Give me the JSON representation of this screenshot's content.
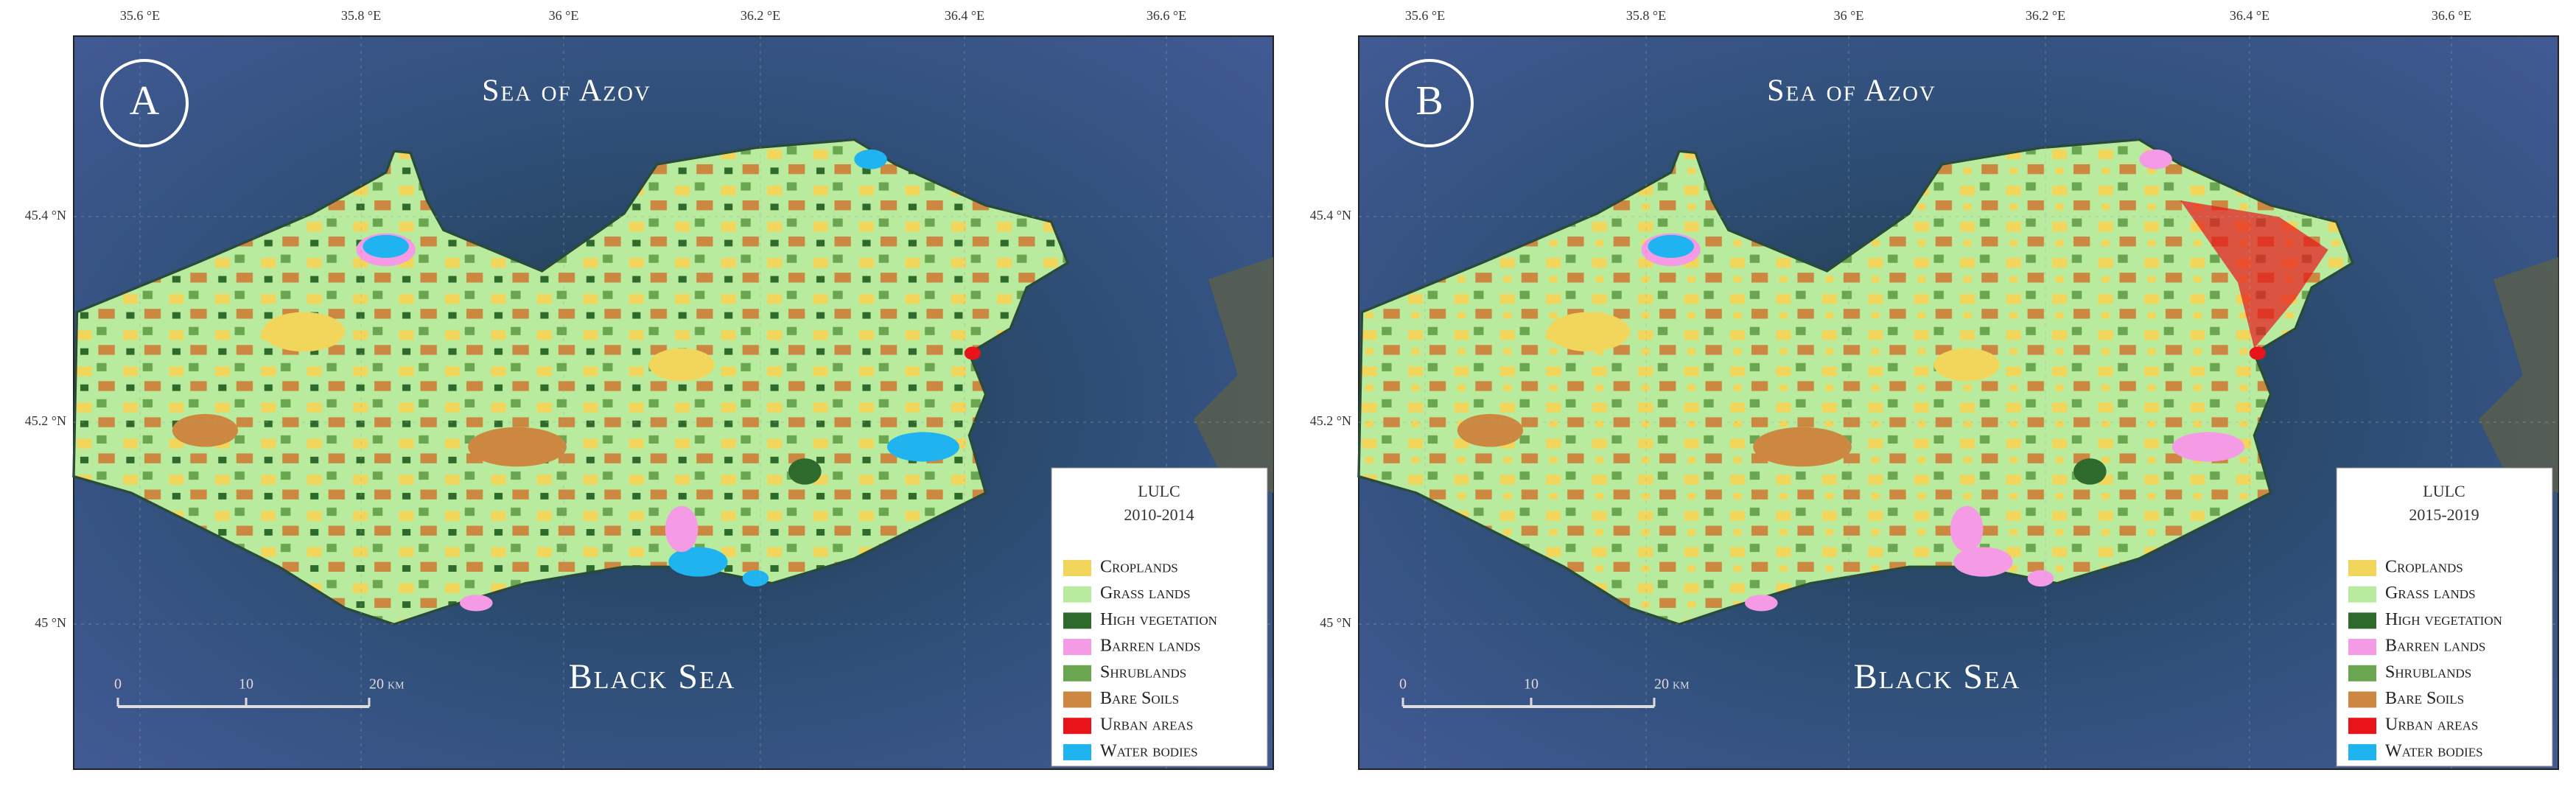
{
  "panels": [
    {
      "label": "A",
      "sea_north": "Sea of Azov",
      "sea_south": "Black Sea",
      "lon_ticks": [
        "35.6 °E",
        "35.8 °E",
        "36 °E",
        "36.2 °E",
        "36.4 °E",
        "36.6 °E"
      ],
      "lat_ticks": [
        "45.4 °N",
        "45.2 °N",
        "45 °N"
      ],
      "scale_labels": [
        "0",
        "10",
        "20 km"
      ],
      "legend": {
        "title": "LULC",
        "period": "2010-2014",
        "items": [
          {
            "label": "Croplands",
            "color": "#f2d65c"
          },
          {
            "label": "Grass lands",
            "color": "#b9eb9e"
          },
          {
            "label": "High vegetation",
            "color": "#2e6a2b"
          },
          {
            "label": "Barren lands",
            "color": "#f59be6"
          },
          {
            "label": "Shrublands",
            "color": "#6aa64f"
          },
          {
            "label": "Bare Soils",
            "color": "#cc8840"
          },
          {
            "label": "Urban areas",
            "color": "#e8141a"
          },
          {
            "label": "Water bodies",
            "color": "#1fb4f0"
          }
        ]
      }
    },
    {
      "label": "B",
      "sea_north": "Sea of Azov",
      "sea_south": "Black Sea",
      "lon_ticks": [
        "35.6 °E",
        "35.8 °E",
        "36 °E",
        "36.2 °E",
        "36.4 °E",
        "36.6 °E"
      ],
      "lat_ticks": [
        "45.4 °N",
        "45.2 °N",
        "45 °N"
      ],
      "scale_labels": [
        "0",
        "10",
        "20 km"
      ],
      "legend": {
        "title": "LULC",
        "period": "2015-2019",
        "items": [
          {
            "label": "Croplands",
            "color": "#f2d65c"
          },
          {
            "label": "Grass lands",
            "color": "#b9eb9e"
          },
          {
            "label": "High vegetation",
            "color": "#2e6a2b"
          },
          {
            "label": "Barren lands",
            "color": "#f59be6"
          },
          {
            "label": "Shrublands",
            "color": "#6aa64f"
          },
          {
            "label": "Bare Soils",
            "color": "#cc8840"
          },
          {
            "label": "Urban areas",
            "color": "#e8141a"
          },
          {
            "label": "Water bodies",
            "color": "#1fb4f0"
          }
        ]
      }
    }
  ]
}
